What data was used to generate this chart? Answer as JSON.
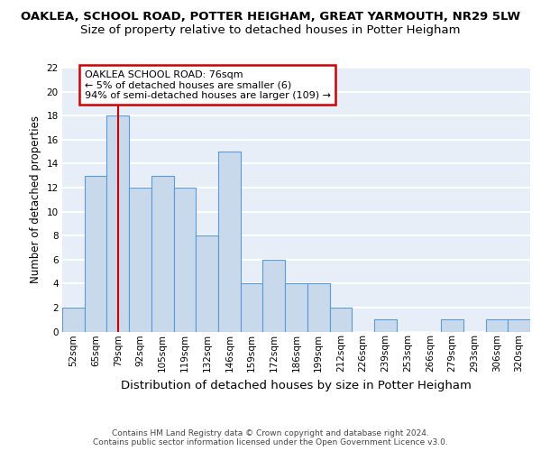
{
  "title1": "OAKLEA, SCHOOL ROAD, POTTER HEIGHAM, GREAT YARMOUTH, NR29 5LW",
  "title2": "Size of property relative to detached houses in Potter Heigham",
  "xlabel": "Distribution of detached houses by size in Potter Heigham",
  "ylabel": "Number of detached properties",
  "categories": [
    "52sqm",
    "65sqm",
    "79sqm",
    "92sqm",
    "105sqm",
    "119sqm",
    "132sqm",
    "146sqm",
    "159sqm",
    "172sqm",
    "186sqm",
    "199sqm",
    "212sqm",
    "226sqm",
    "239sqm",
    "253sqm",
    "266sqm",
    "279sqm",
    "293sqm",
    "306sqm",
    "320sqm"
  ],
  "values": [
    2,
    13,
    18,
    12,
    13,
    12,
    8,
    15,
    4,
    6,
    4,
    4,
    2,
    0,
    1,
    0,
    0,
    1,
    0,
    1,
    1
  ],
  "bar_color": "#c9d9ec",
  "bar_edge_color": "#5b9bd5",
  "vline_x_index": 2,
  "vline_color": "#cc0000",
  "annotation_text": "OAKLEA SCHOOL ROAD: 76sqm\n← 5% of detached houses are smaller (6)\n94% of semi-detached houses are larger (109) →",
  "annotation_box_color": "white",
  "annotation_box_edge_color": "#cc0000",
  "ylim": [
    0,
    22
  ],
  "yticks": [
    0,
    2,
    4,
    6,
    8,
    10,
    12,
    14,
    16,
    18,
    20,
    22
  ],
  "footer": "Contains HM Land Registry data © Crown copyright and database right 2024.\nContains public sector information licensed under the Open Government Licence v3.0.",
  "background_color": "#e8eef8",
  "grid_color": "white",
  "title1_fontsize": 9.5,
  "title2_fontsize": 9.5,
  "xlabel_fontsize": 9.5,
  "ylabel_fontsize": 8.5,
  "tick_fontsize": 7.5,
  "annotation_fontsize": 8,
  "footer_fontsize": 6.5
}
